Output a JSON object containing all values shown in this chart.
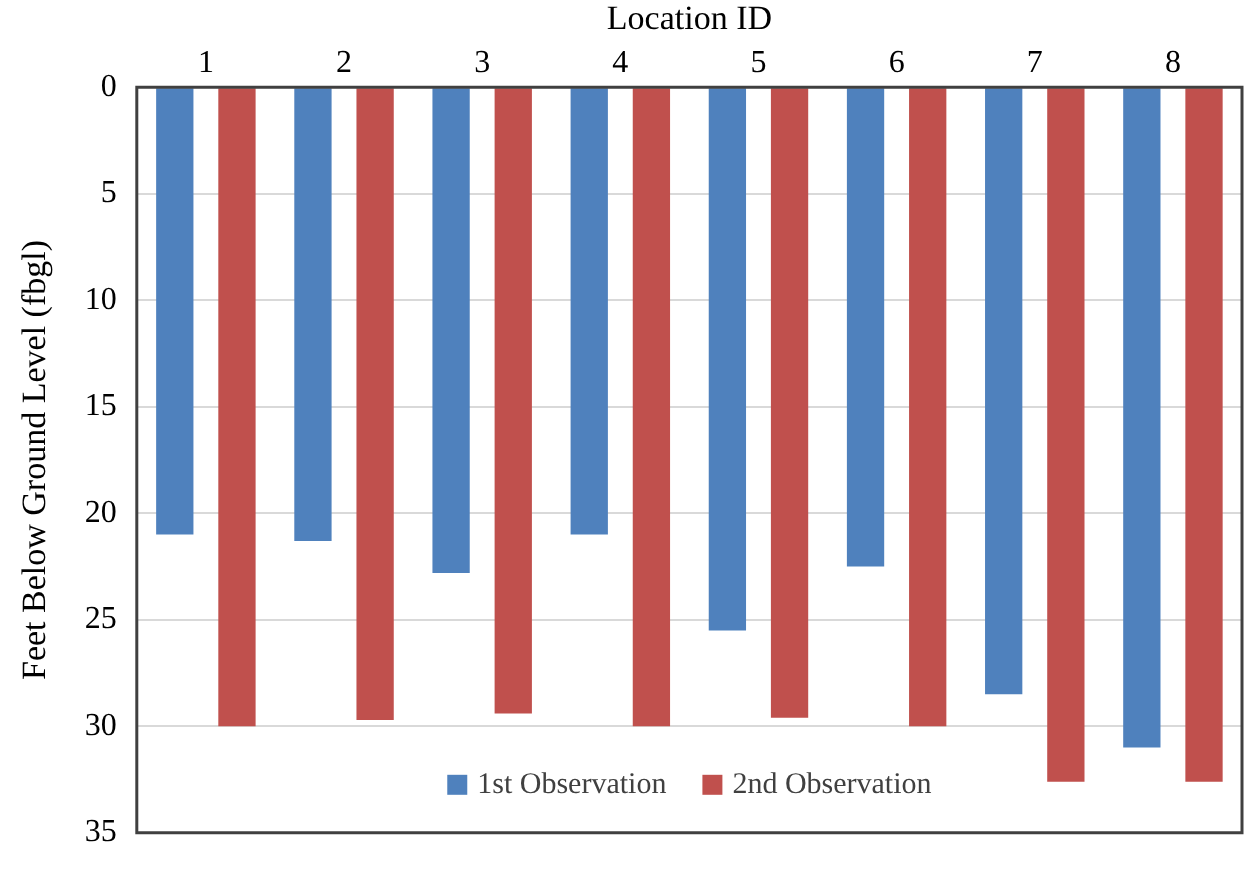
{
  "chart_data": {
    "type": "bar",
    "xlabel": "Location ID",
    "ylabel": "Feet Below Ground Level (fbgl)",
    "categories": [
      "1",
      "2",
      "3",
      "4",
      "5",
      "6",
      "7",
      "8"
    ],
    "series": [
      {
        "name": "1st Observation",
        "color": "#4f81bd",
        "values": [
          21.0,
          21.3,
          22.8,
          21.0,
          25.5,
          22.5,
          28.5,
          31.0
        ]
      },
      {
        "name": "2nd Observation",
        "color": "#c0504d",
        "values": [
          30.0,
          29.7,
          29.4,
          30.0,
          29.6,
          30.0,
          32.6,
          32.6
        ]
      }
    ],
    "ylim": [
      35,
      0
    ],
    "yticks": [
      0,
      5,
      10,
      15,
      20,
      25,
      30,
      35
    ],
    "grid": "y",
    "legend": "bottom"
  }
}
